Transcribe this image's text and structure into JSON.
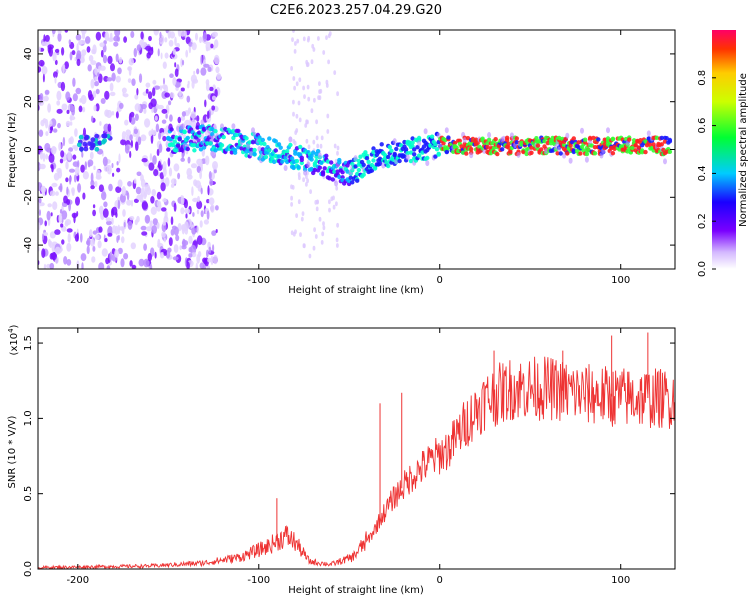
{
  "title": "C2E6.2023.257.04.29.G20",
  "chart_data": [
    {
      "type": "heatmap",
      "xlabel": "Height of straight line (km)",
      "ylabel": "Frequency (Hz)",
      "xlim": [
        -222,
        130
      ],
      "ylim": [
        -50,
        50
      ],
      "xticks": [
        -200,
        -100,
        0,
        100
      ],
      "yticks": [
        -40,
        -20,
        0,
        20,
        40
      ],
      "colorbar": {
        "label": "Normalized spectral amplitude",
        "range": [
          0,
          1
        ],
        "ticks": [
          0.0,
          0.2,
          0.4,
          0.6,
          0.8
        ],
        "tick_labels": [
          "0.0",
          "0.2",
          "0.4",
          "0.6",
          "0.8"
        ]
      },
      "ridge": {
        "description": "dominant frequency vs height",
        "points": [
          {
            "x": -190,
            "y": 3
          },
          {
            "x": -145,
            "y": 4
          },
          {
            "x": -130,
            "y": 5
          },
          {
            "x": -110,
            "y": 3
          },
          {
            "x": -95,
            "y": 0
          },
          {
            "x": -80,
            "y": -3
          },
          {
            "x": -65,
            "y": -6
          },
          {
            "x": -52,
            "y": -10
          },
          {
            "x": -45,
            "y": -8
          },
          {
            "x": -35,
            "y": -3
          },
          {
            "x": -20,
            "y": -1
          },
          {
            "x": 0,
            "y": 2
          },
          {
            "x": 30,
            "y": 1.5
          },
          {
            "x": 60,
            "y": 1.5
          },
          {
            "x": 100,
            "y": 1.5
          },
          {
            "x": 130,
            "y": 1.5
          }
        ]
      }
    },
    {
      "type": "line",
      "xlabel": "Height of straight line (km)",
      "ylabel": "SNR (10 * V/V)",
      "y_multiplier": "(x10",
      "y_multiplier_exponent": "4",
      "xlim": [
        -222,
        130
      ],
      "ylim": [
        0,
        1.6
      ],
      "xticks": [
        -200,
        -100,
        0,
        100
      ],
      "yticks": [
        0.0,
        0.5,
        1.0,
        1.5
      ],
      "ytick_labels": [
        "0.0",
        "0.5",
        "1.0",
        "1.5"
      ],
      "series": [
        {
          "color": "#ee3333",
          "envelope": [
            {
              "x": -222,
              "y": 0.01
            },
            {
              "x": -160,
              "y": 0.02
            },
            {
              "x": -130,
              "y": 0.04
            },
            {
              "x": -110,
              "y": 0.08
            },
            {
              "x": -95,
              "y": 0.15
            },
            {
              "x": -85,
              "y": 0.22
            },
            {
              "x": -80,
              "y": 0.18
            },
            {
              "x": -72,
              "y": 0.05
            },
            {
              "x": -60,
              "y": 0.03
            },
            {
              "x": -48,
              "y": 0.08
            },
            {
              "x": -38,
              "y": 0.22
            },
            {
              "x": -32,
              "y": 0.35
            },
            {
              "x": -25,
              "y": 0.48
            },
            {
              "x": -15,
              "y": 0.62
            },
            {
              "x": -5,
              "y": 0.72
            },
            {
              "x": 5,
              "y": 0.8
            },
            {
              "x": 15,
              "y": 0.98
            },
            {
              "x": 25,
              "y": 1.12
            },
            {
              "x": 40,
              "y": 1.2
            },
            {
              "x": 60,
              "y": 1.2
            },
            {
              "x": 80,
              "y": 1.16
            },
            {
              "x": 100,
              "y": 1.14
            },
            {
              "x": 130,
              "y": 1.13
            }
          ],
          "spikes": [
            {
              "x": -90,
              "y": 0.47
            },
            {
              "x": -33,
              "y": 1.1
            },
            {
              "x": -21,
              "y": 1.17
            },
            {
              "x": 30,
              "y": 1.45
            },
            {
              "x": 68,
              "y": 1.45
            },
            {
              "x": 95,
              "y": 1.55
            },
            {
              "x": 115,
              "y": 1.57
            }
          ]
        }
      ]
    }
  ]
}
